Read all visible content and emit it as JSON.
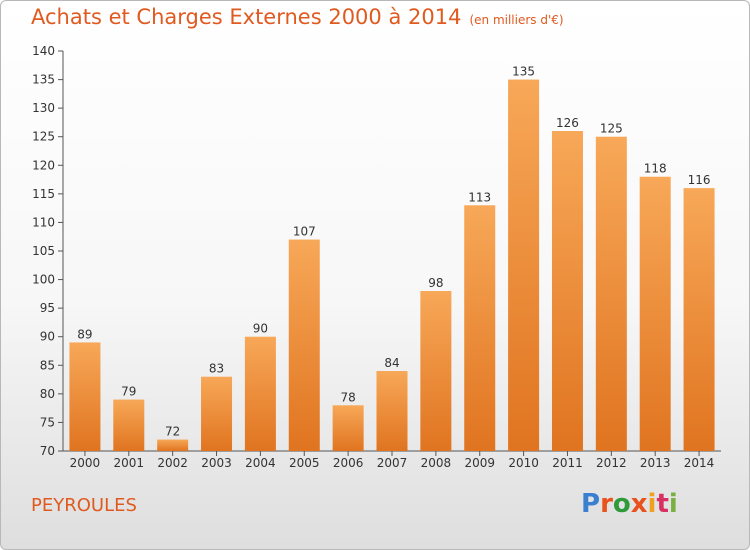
{
  "title": "Achats et Charges Externes 2000 à 2014",
  "unit": "(en milliers d'€)",
  "commune": "PEYROULES",
  "logo": "Proxiti",
  "colors": {
    "bar_light": "#f7a858",
    "bar_dark": "#e07420",
    "title": "#e05a20"
  },
  "chart_data": {
    "type": "bar",
    "title": "Achats et Charges Externes 2000 à 2014",
    "xlabel": "",
    "ylabel": "",
    "categories": [
      "2000",
      "2001",
      "2002",
      "2003",
      "2004",
      "2005",
      "2006",
      "2007",
      "2008",
      "2009",
      "2010",
      "2011",
      "2012",
      "2013",
      "2014"
    ],
    "values": [
      89,
      79,
      72,
      83,
      90,
      107,
      78,
      84,
      98,
      113,
      135,
      126,
      125,
      118,
      116
    ],
    "ylim": [
      70,
      140
    ],
    "yticks": [
      70,
      75,
      80,
      85,
      90,
      95,
      100,
      105,
      110,
      115,
      120,
      125,
      130,
      135,
      140
    ],
    "grid": false
  }
}
